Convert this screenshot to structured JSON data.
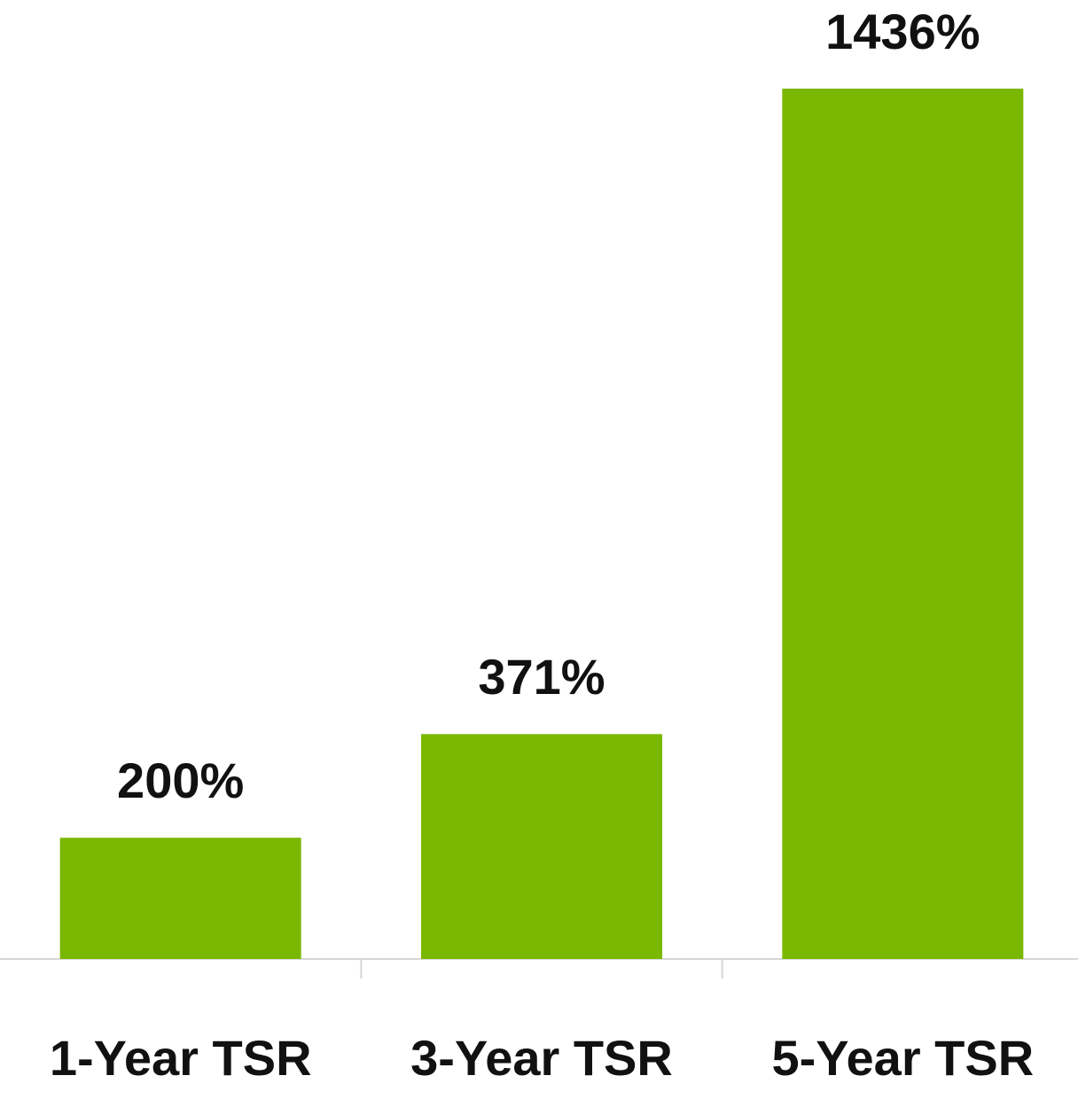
{
  "chart_data": {
    "type": "bar",
    "categories": [
      "1-Year TSR",
      "3-Year TSR",
      "5-Year TSR"
    ],
    "values": [
      200,
      371,
      1436
    ],
    "value_labels": [
      "200%",
      "371%",
      "1436%"
    ],
    "color": "#7ab800"
  }
}
